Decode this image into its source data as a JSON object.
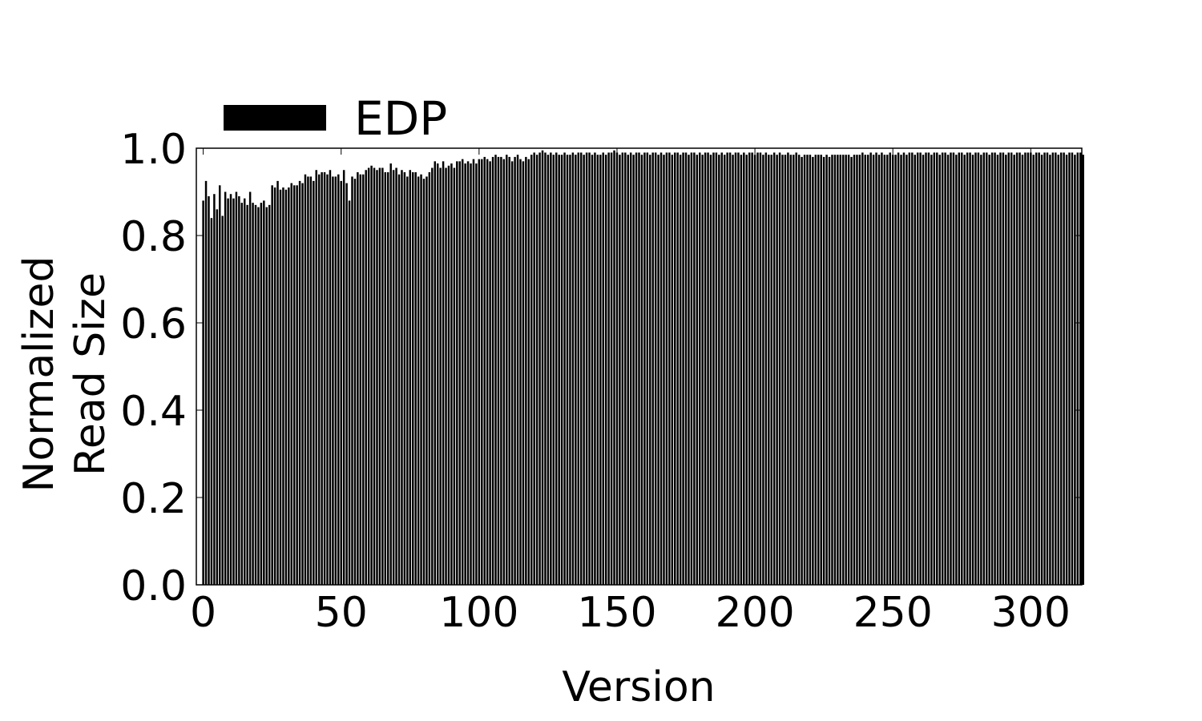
{
  "chart_data": {
    "type": "bar",
    "title": "",
    "xlabel": "Version",
    "ylabel_lines": [
      "Normalized",
      "Read Size"
    ],
    "xlim": [
      -2.5,
      318.5
    ],
    "ylim": [
      0,
      1.0
    ],
    "xticks": [
      0,
      50,
      100,
      150,
      200,
      250,
      300
    ],
    "yticks": [
      "0.0",
      "0.2",
      "0.4",
      "0.6",
      "0.8",
      "1.0"
    ],
    "legend": {
      "position": "top-left",
      "entries": [
        "EDP"
      ]
    },
    "grid": false,
    "bar_color": "#000000",
    "series": [
      {
        "name": "EDP",
        "x_start": 0,
        "values": [
          0.88,
          0.925,
          0.89,
          0.84,
          0.895,
          0.86,
          0.915,
          0.845,
          0.9,
          0.885,
          0.895,
          0.885,
          0.9,
          0.89,
          0.875,
          0.885,
          0.87,
          0.9,
          0.875,
          0.87,
          0.865,
          0.875,
          0.88,
          0.865,
          0.87,
          0.915,
          0.91,
          0.925,
          0.905,
          0.91,
          0.905,
          0.91,
          0.92,
          0.915,
          0.915,
          0.925,
          0.92,
          0.94,
          0.935,
          0.935,
          0.925,
          0.95,
          0.94,
          0.945,
          0.945,
          0.94,
          0.95,
          0.935,
          0.935,
          0.94,
          0.925,
          0.95,
          0.92,
          0.88,
          0.935,
          0.93,
          0.945,
          0.94,
          0.94,
          0.95,
          0.955,
          0.96,
          0.955,
          0.95,
          0.955,
          0.955,
          0.945,
          0.945,
          0.965,
          0.95,
          0.955,
          0.94,
          0.95,
          0.945,
          0.935,
          0.95,
          0.945,
          0.945,
          0.935,
          0.94,
          0.93,
          0.935,
          0.945,
          0.955,
          0.97,
          0.965,
          0.955,
          0.97,
          0.955,
          0.96,
          0.965,
          0.955,
          0.97,
          0.97,
          0.975,
          0.965,
          0.97,
          0.965,
          0.975,
          0.965,
          0.975,
          0.975,
          0.98,
          0.975,
          0.97,
          0.98,
          0.985,
          0.98,
          0.98,
          0.975,
          0.985,
          0.98,
          0.97,
          0.98,
          0.985,
          0.975,
          0.97,
          0.98,
          0.975,
          0.985,
          0.99,
          0.985,
          0.99,
          0.995,
          0.99,
          0.985,
          0.99,
          0.985,
          0.99,
          0.985,
          0.985,
          0.99,
          0.985,
          0.985,
          0.99,
          0.985,
          0.99,
          0.99,
          0.985,
          0.99,
          0.99,
          0.985,
          0.99,
          0.985,
          0.985,
          0.99,
          0.985,
          0.99,
          0.99,
          0.995,
          0.99,
          0.985,
          0.99,
          0.99,
          0.985,
          0.99,
          0.985,
          0.99,
          0.99,
          0.985,
          0.99,
          0.99,
          0.985,
          0.99,
          0.99,
          0.985,
          0.99,
          0.985,
          0.99,
          0.99,
          0.985,
          0.99,
          0.99,
          0.985,
          0.99,
          0.99,
          0.985,
          0.99,
          0.99,
          0.985,
          0.99,
          0.985,
          0.99,
          0.99,
          0.985,
          0.99,
          0.99,
          0.985,
          0.99,
          0.985,
          0.99,
          0.99,
          0.985,
          0.99,
          0.99,
          0.985,
          0.99,
          0.985,
          0.99,
          0.99,
          0.985,
          0.99,
          0.99,
          0.985,
          0.99,
          0.985,
          0.985,
          0.99,
          0.985,
          0.99,
          0.985,
          0.985,
          0.99,
          0.985,
          0.985,
          0.99,
          0.985,
          0.98,
          0.985,
          0.985,
          0.985,
          0.98,
          0.985,
          0.985,
          0.985,
          0.98,
          0.985,
          0.98,
          0.985,
          0.985,
          0.985,
          0.985,
          0.985,
          0.985,
          0.985,
          0.98,
          0.985,
          0.985,
          0.985,
          0.99,
          0.985,
          0.985,
          0.99,
          0.985,
          0.99,
          0.985,
          0.99,
          0.985,
          0.985,
          0.99,
          0.985,
          0.985,
          0.99,
          0.985,
          0.99,
          0.985,
          0.99,
          0.99,
          0.985,
          0.99,
          0.99,
          0.985,
          0.99,
          0.99,
          0.985,
          0.99,
          0.99,
          0.985,
          0.99,
          0.99,
          0.985,
          0.99,
          0.99,
          0.985,
          0.99,
          0.99,
          0.985,
          0.99,
          0.99,
          0.985,
          0.99,
          0.99,
          0.985,
          0.99,
          0.99,
          0.985,
          0.99,
          0.99,
          0.985,
          0.99,
          0.99,
          0.985,
          0.99,
          0.99,
          0.985,
          0.99,
          0.99,
          0.985,
          0.99,
          0.99,
          0.99,
          0.985,
          0.99,
          0.99,
          0.985,
          0.99,
          0.99,
          0.985,
          0.99,
          0.99,
          0.985,
          0.99,
          0.99,
          0.985,
          0.99,
          0.99,
          0.985,
          0.99,
          0.99,
          0.985
        ]
      }
    ]
  }
}
